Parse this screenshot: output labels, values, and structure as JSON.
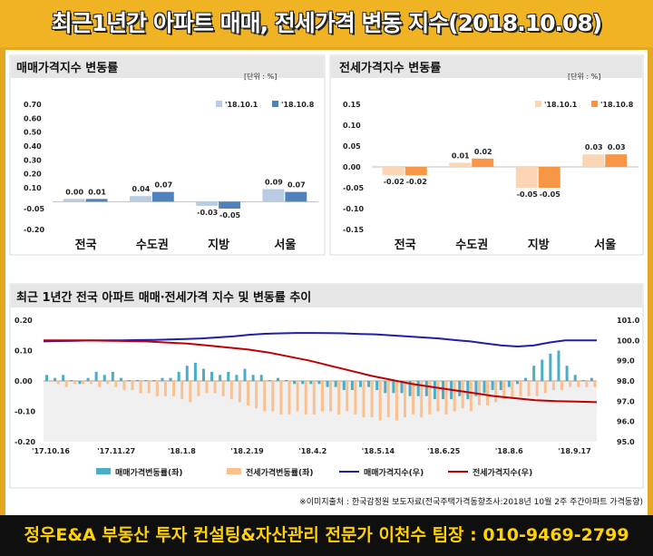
{
  "title": "최근1년간 아파트 매매, 전세가격 변동 지수(2018.10.08)",
  "unit": "[단위 : %]",
  "source": "※이미지출처 : 한국감정원 보도자료(전국주택가격동향조사:2018년 10월 2주 주간아파트 가격동향)",
  "footer": "정우E&A 부동산 투자 컨설팅&자산관리 전문가 이천수 팀장 : 010-9469-2799",
  "colors": {
    "sale_prev": "#b8cce4",
    "sale_cur": "#4f81bd",
    "jeonse_prev": "#fcd5b4",
    "jeonse_cur": "#f79646",
    "weekly_sale": "#4bacc6",
    "weekly_jeonse": "#fac090",
    "sale_index": "#1f1fa8",
    "jeonse_index": "#c00000"
  },
  "chart_data": [
    {
      "type": "bar",
      "title": "매매가격지수 변동률",
      "categories": [
        "전국",
        "수도권",
        "지방",
        "서울"
      ],
      "series": [
        {
          "name": "'18.10.1",
          "values": [
            0.0,
            0.04,
            -0.03,
            0.09
          ]
        },
        {
          "name": "'18.10.8",
          "values": [
            0.01,
            0.07,
            -0.05,
            0.07
          ]
        }
      ],
      "data_labels": [
        [
          "0.00",
          "0.04",
          "-0.03",
          "0.09"
        ],
        [
          "0.01",
          "0.07",
          "-0.05",
          "0.07"
        ]
      ],
      "ylim": [
        -0.2,
        0.7
      ],
      "yticks": [
        "0.70",
        "0.60",
        "0.50",
        "0.40",
        "0.30",
        "0.20",
        "0.10",
        "-0.05",
        "-0.20"
      ],
      "ytick_values": [
        0.7,
        0.6,
        0.5,
        0.4,
        0.3,
        0.2,
        0.1,
        -0.05,
        -0.2
      ],
      "legend": "top-right"
    },
    {
      "type": "bar",
      "title": "전세가격지수 변동률",
      "categories": [
        "전국",
        "수도권",
        "지방",
        "서울"
      ],
      "series": [
        {
          "name": "'18.10.1",
          "values": [
            -0.02,
            0.01,
            -0.05,
            0.03
          ]
        },
        {
          "name": "'18.10.8",
          "values": [
            -0.02,
            0.02,
            -0.05,
            0.03
          ]
        }
      ],
      "data_labels": [
        [
          "-0.02",
          "0.01",
          "-0.05",
          "0.03"
        ],
        [
          "-0.02",
          "0.02",
          "-0.05",
          "0.03"
        ]
      ],
      "ylim": [
        -0.15,
        0.15
      ],
      "yticks": [
        "0.15",
        "0.10",
        "0.05",
        "0.00",
        "-0.05",
        "-0.10",
        "-0.15"
      ],
      "ytick_values": [
        0.15,
        0.1,
        0.05,
        0.0,
        -0.05,
        -0.1,
        -0.15
      ],
      "legend": "top-right"
    },
    {
      "type": "bar+line",
      "title": "최근 1년간 전국 아파트 매매·전세가격 지수 및 변동률 추이",
      "x_ticks": [
        "'17.10.16",
        "'17.11.27",
        "'18.1.8",
        "'18.2.19",
        "'18.4.2",
        "'18.5.14",
        "'18.6.25",
        "'18.8.6",
        "'18.9.17"
      ],
      "ylim_left": [
        -0.2,
        0.2
      ],
      "yticks_left": [
        "0.20",
        "0.10",
        "0.00",
        "-0.10",
        "-0.20"
      ],
      "ylim_right": [
        95.0,
        101.0
      ],
      "yticks_right": [
        "101.0",
        "100.0",
        "99.0",
        "98.0",
        "97.0",
        "96.0",
        "95.0"
      ],
      "legend": "bottom",
      "series": [
        {
          "name": "매매가격변동률(좌)",
          "type": "bar",
          "axis": "left",
          "values": [
            0.02,
            0.01,
            0.02,
            0.0,
            -0.01,
            0.01,
            0.03,
            0.02,
            0.03,
            0.01,
            0.0,
            0.0,
            0.0,
            0.0,
            0.01,
            0.01,
            0.03,
            0.05,
            0.06,
            0.04,
            0.03,
            0.02,
            0.03,
            0.02,
            0.04,
            0.02,
            0.02,
            0.0,
            0.01,
            0.0,
            -0.01,
            -0.01,
            -0.01,
            -0.01,
            -0.02,
            -0.02,
            -0.03,
            -0.03,
            -0.02,
            -0.02,
            -0.03,
            -0.04,
            -0.04,
            -0.04,
            -0.05,
            -0.05,
            -0.05,
            -0.06,
            -0.06,
            -0.06,
            -0.05,
            -0.06,
            -0.05,
            -0.04,
            -0.03,
            -0.03,
            -0.02,
            -0.01,
            0.01,
            0.05,
            0.07,
            0.09,
            0.1,
            0.05,
            0.02,
            0.0,
            0.01
          ]
        },
        {
          "name": "전세가격변동률(좌)",
          "type": "bar",
          "axis": "left",
          "values": [
            0.0,
            -0.01,
            -0.02,
            -0.01,
            -0.01,
            -0.01,
            -0.02,
            -0.01,
            -0.02,
            -0.03,
            -0.03,
            -0.04,
            -0.04,
            -0.05,
            -0.05,
            -0.05,
            -0.06,
            -0.07,
            -0.05,
            -0.04,
            -0.04,
            -0.05,
            -0.06,
            -0.07,
            -0.08,
            -0.09,
            -0.1,
            -0.1,
            -0.11,
            -0.11,
            -0.1,
            -0.11,
            -0.11,
            -0.1,
            -0.1,
            -0.11,
            -0.1,
            -0.11,
            -0.12,
            -0.12,
            -0.13,
            -0.12,
            -0.13,
            -0.12,
            -0.11,
            -0.12,
            -0.11,
            -0.1,
            -0.11,
            -0.1,
            -0.09,
            -0.1,
            -0.08,
            -0.08,
            -0.07,
            -0.06,
            -0.06,
            -0.05,
            -0.05,
            -0.05,
            -0.04,
            -0.03,
            -0.03,
            -0.02,
            -0.02,
            -0.02,
            -0.02
          ]
        },
        {
          "name": "매매가격지수(우)",
          "type": "line",
          "axis": "right",
          "values": [
            99.95,
            99.97,
            99.98,
            100.0,
            100.0,
            100.0,
            100.02,
            100.03,
            100.05,
            100.07,
            100.1,
            100.15,
            100.2,
            100.28,
            100.33,
            100.35,
            100.37,
            100.37,
            100.36,
            100.35,
            100.32,
            100.3,
            100.25,
            100.2,
            100.15,
            100.1,
            100.02,
            99.95,
            99.85,
            99.75,
            99.7,
            99.75,
            99.9,
            100.0,
            100.0,
            100.0
          ]
        },
        {
          "name": "전세가격지수(우)",
          "type": "line",
          "axis": "right",
          "values": [
            100.0,
            100.0,
            100.0,
            99.99,
            99.97,
            99.95,
            99.9,
            99.85,
            99.75,
            99.65,
            99.55,
            99.4,
            99.2,
            99.0,
            98.75,
            98.5,
            98.25,
            98.05,
            97.85,
            97.7,
            97.55,
            97.4,
            97.25,
            97.15,
            97.05,
            97.0,
            96.98,
            96.95
          ]
        }
      ]
    }
  ]
}
